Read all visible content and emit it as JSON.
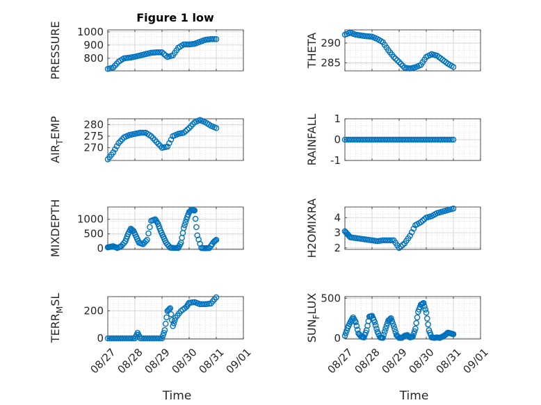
{
  "figure": {
    "title": "Figure 1 low",
    "marker_color": "#0072BD",
    "grid_color": "#d9d9d9",
    "axis_color": "#262626"
  },
  "chart_data": [
    {
      "type": "scatter",
      "ylabel": "PRESSURE",
      "yticks": [
        800,
        900,
        1000
      ],
      "ylim": [
        705,
        1015
      ],
      "xlim": [
        0,
        5
      ],
      "xticks": [
        0,
        1,
        2,
        3,
        4,
        5
      ],
      "x": [
        0.0,
        0.2,
        0.4,
        0.6,
        0.8,
        1.0,
        1.2,
        1.4,
        1.6,
        1.8,
        2.0,
        2.2,
        2.4,
        2.6,
        2.8,
        3.0,
        3.2,
        3.4,
        3.6,
        3.8,
        4.0
      ],
      "y": [
        720,
        730,
        775,
        800,
        805,
        812,
        822,
        832,
        842,
        845,
        845,
        810,
        822,
        880,
        905,
        905,
        910,
        925,
        940,
        945,
        945
      ]
    },
    {
      "type": "scatter",
      "ylabel": "THETA",
      "yticks": [
        285,
        290
      ],
      "ylim": [
        283,
        293.3
      ],
      "xlim": [
        0,
        5
      ],
      "xticks": [
        0,
        1,
        2,
        3,
        4,
        5
      ],
      "x": [
        0.0,
        0.2,
        0.4,
        0.6,
        0.8,
        1.0,
        1.2,
        1.4,
        1.6,
        1.8,
        2.0,
        2.2,
        2.4,
        2.6,
        2.8,
        3.0,
        3.2,
        3.4,
        3.6,
        3.8,
        4.0
      ],
      "y": [
        292.1,
        292.6,
        292.1,
        291.9,
        291.7,
        291.6,
        291.0,
        290.2,
        288.2,
        286.5,
        285.2,
        283.8,
        283.6,
        283.9,
        284.5,
        286.5,
        287.2,
        286.8,
        285.8,
        284.8,
        284.0
      ]
    },
    {
      "type": "scatter",
      "ylabel": "AIR_TEMP",
      "yticks": [
        270,
        275,
        280
      ],
      "ylim": [
        264.5,
        282.5
      ],
      "xlim": [
        0,
        5
      ],
      "xticks": [
        0,
        1,
        2,
        3,
        4,
        5
      ],
      "x": [
        0.0,
        0.2,
        0.4,
        0.6,
        0.8,
        1.0,
        1.2,
        1.4,
        1.6,
        1.8,
        2.0,
        2.2,
        2.4,
        2.6,
        2.8,
        3.0,
        3.2,
        3.4,
        3.6,
        3.8,
        4.0
      ],
      "y": [
        265,
        268,
        272,
        274.5,
        275.5,
        276,
        276.5,
        276.5,
        275,
        272.5,
        270,
        270.5,
        275,
        276,
        276.5,
        278.5,
        281,
        282,
        281,
        279.5,
        278.5
      ]
    },
    {
      "type": "scatter",
      "ylabel": "RAINFALL",
      "yticks": [
        -1,
        0,
        1
      ],
      "ylim": [
        -1,
        1
      ],
      "xlim": [
        0,
        5
      ],
      "xticks": [
        0,
        1,
        2,
        3,
        4,
        5
      ],
      "x": [
        0.0,
        0.2,
        0.4,
        0.6,
        0.8,
        1.0,
        1.2,
        1.4,
        1.6,
        1.8,
        2.0,
        2.2,
        2.4,
        2.6,
        2.8,
        3.0,
        3.2,
        3.4,
        3.6,
        3.8,
        4.0
      ],
      "y": [
        0,
        0,
        0,
        0,
        0,
        0,
        0,
        0,
        0,
        0,
        0,
        0,
        0,
        0,
        0,
        0,
        0,
        0,
        0,
        0,
        0
      ]
    },
    {
      "type": "scatter",
      "ylabel": "MIXDEPTH",
      "yticks": [
        0,
        500,
        1000
      ],
      "ylim": [
        -30,
        1420
      ],
      "xlim": [
        0,
        5
      ],
      "xticks": [
        0,
        1,
        2,
        3,
        4,
        5
      ],
      "x": [
        0.0,
        0.1,
        0.2,
        0.35,
        0.5,
        0.65,
        0.75,
        0.85,
        0.95,
        1.05,
        1.15,
        1.3,
        1.45,
        1.6,
        1.75,
        1.85,
        1.95,
        2.05,
        2.15,
        2.3,
        2.45,
        2.6,
        2.7,
        2.8,
        2.9,
        3.0,
        3.1,
        3.2,
        3.3,
        3.45,
        3.6,
        3.75,
        3.9,
        4.0
      ],
      "y": [
        40,
        60,
        80,
        20,
        80,
        250,
        500,
        680,
        600,
        400,
        200,
        150,
        300,
        950,
        1000,
        850,
        600,
        400,
        200,
        30,
        20,
        20,
        200,
        700,
        1000,
        1250,
        1330,
        1300,
        450,
        20,
        10,
        20,
        220,
        300
      ]
    },
    {
      "type": "scatter",
      "ylabel": "H2OMIXRA",
      "yticks": [
        2,
        3,
        4
      ],
      "ylim": [
        1.9,
        4.7
      ],
      "xlim": [
        0,
        5
      ],
      "xticks": [
        0,
        1,
        2,
        3,
        4,
        5
      ],
      "x": [
        0.0,
        0.1,
        0.2,
        0.4,
        0.6,
        0.8,
        1.0,
        1.2,
        1.4,
        1.6,
        1.8,
        2.0,
        2.2,
        2.4,
        2.6,
        2.8,
        3.0,
        3.2,
        3.4,
        3.6,
        3.8,
        4.0
      ],
      "y": [
        3.1,
        2.9,
        2.7,
        2.65,
        2.6,
        2.55,
        2.5,
        2.45,
        2.5,
        2.5,
        2.5,
        2.0,
        2.3,
        2.8,
        3.5,
        3.7,
        4.0,
        4.1,
        4.3,
        4.4,
        4.5,
        4.6
      ]
    },
    {
      "type": "scatter",
      "ylabel": "TERR_MSL",
      "yticks": [
        0,
        200
      ],
      "ylim": [
        -5,
        305
      ],
      "xlim": [
        0,
        5
      ],
      "xticks": [
        0,
        1,
        2,
        3,
        4,
        5
      ],
      "xticklabels": [
        "08/27",
        "08/28",
        "08/29",
        "08/30",
        "08/31",
        "09/01"
      ],
      "xlabel": "Time",
      "x": [
        0.0,
        0.2,
        0.4,
        0.6,
        0.8,
        1.0,
        1.1,
        1.2,
        1.4,
        1.6,
        1.8,
        2.0,
        2.1,
        2.2,
        2.3,
        2.4,
        2.5,
        2.7,
        2.9,
        3.0,
        3.2,
        3.4,
        3.6,
        3.8,
        4.0
      ],
      "y": [
        0,
        0,
        0,
        0,
        0,
        0,
        40,
        0,
        0,
        0,
        0,
        0,
        60,
        200,
        220,
        90,
        150,
        200,
        230,
        260,
        265,
        250,
        250,
        255,
        300
      ]
    },
    {
      "type": "scatter",
      "ylabel": "SUN_FLUX",
      "yticks": [
        0,
        500
      ],
      "ylim": [
        -10,
        520
      ],
      "xlim": [
        0,
        5
      ],
      "xticks": [
        0,
        1,
        2,
        3,
        4,
        5
      ],
      "xticklabels": [
        "08/27",
        "08/28",
        "08/29",
        "08/30",
        "08/31",
        "09/01"
      ],
      "xlabel": "Time",
      "x": [
        0.0,
        0.1,
        0.2,
        0.3,
        0.4,
        0.5,
        0.6,
        0.7,
        0.8,
        0.9,
        1.0,
        1.1,
        1.2,
        1.3,
        1.4,
        1.5,
        1.6,
        1.7,
        1.8,
        1.9,
        2.0,
        2.1,
        2.2,
        2.3,
        2.4,
        2.5,
        2.6,
        2.7,
        2.8,
        2.9,
        3.0,
        3.1,
        3.2,
        3.3,
        3.4,
        3.5,
        3.6,
        3.7,
        3.8,
        3.9,
        4.0
      ],
      "y": [
        30,
        130,
        200,
        260,
        200,
        60,
        20,
        10,
        100,
        270,
        280,
        200,
        80,
        10,
        5,
        120,
        220,
        250,
        150,
        40,
        5,
        5,
        30,
        40,
        10,
        20,
        120,
        330,
        420,
        440,
        320,
        100,
        10,
        5,
        10,
        5,
        20,
        40,
        70,
        60,
        50
      ]
    }
  ]
}
